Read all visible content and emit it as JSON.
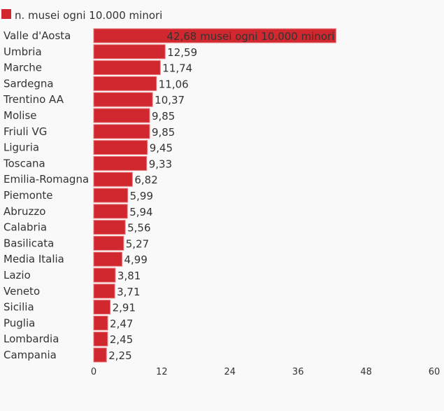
{
  "chart_data": {
    "type": "bar",
    "orientation": "horizontal",
    "legend": {
      "label": "n. musei ogni 10.000 minori",
      "color": "#d0282e",
      "placement": "top-left"
    },
    "categories": [
      "Valle d'Aosta",
      "Umbria",
      "Marche",
      "Sardegna",
      "Trentino AA",
      "Molise",
      "Friuli VG",
      "Liguria",
      "Toscana",
      "Emilia-Romagna",
      "Piemonte",
      "Abruzzo",
      "Calabria",
      "Basilicata",
      "Media Italia",
      "Lazio",
      "Veneto",
      "Sicilia",
      "Puglia",
      "Lombardia",
      "Campania"
    ],
    "values": [
      42.68,
      12.59,
      11.74,
      11.06,
      10.37,
      9.85,
      9.85,
      9.45,
      9.33,
      6.82,
      5.99,
      5.94,
      5.56,
      5.27,
      4.99,
      3.81,
      3.71,
      2.91,
      2.47,
      2.45,
      2.25
    ],
    "value_labels": [
      "42,68 musei ogni 10.000 minori",
      "12,59",
      "11,74",
      "11,06",
      "10,37",
      "9,85",
      "9,85",
      "9,45",
      "9,33",
      "6,82",
      "5,99",
      "5,94",
      "5,56",
      "5,27",
      "4,99",
      "3,81",
      "3,71",
      "2,91",
      "2,47",
      "2,45",
      "2,25"
    ],
    "xlim": [
      0,
      60
    ],
    "xticks": [
      0,
      12,
      24,
      36,
      48,
      60
    ],
    "xtick_labels": [
      "0",
      "12",
      "24",
      "36",
      "48",
      "60"
    ],
    "grid": false
  }
}
